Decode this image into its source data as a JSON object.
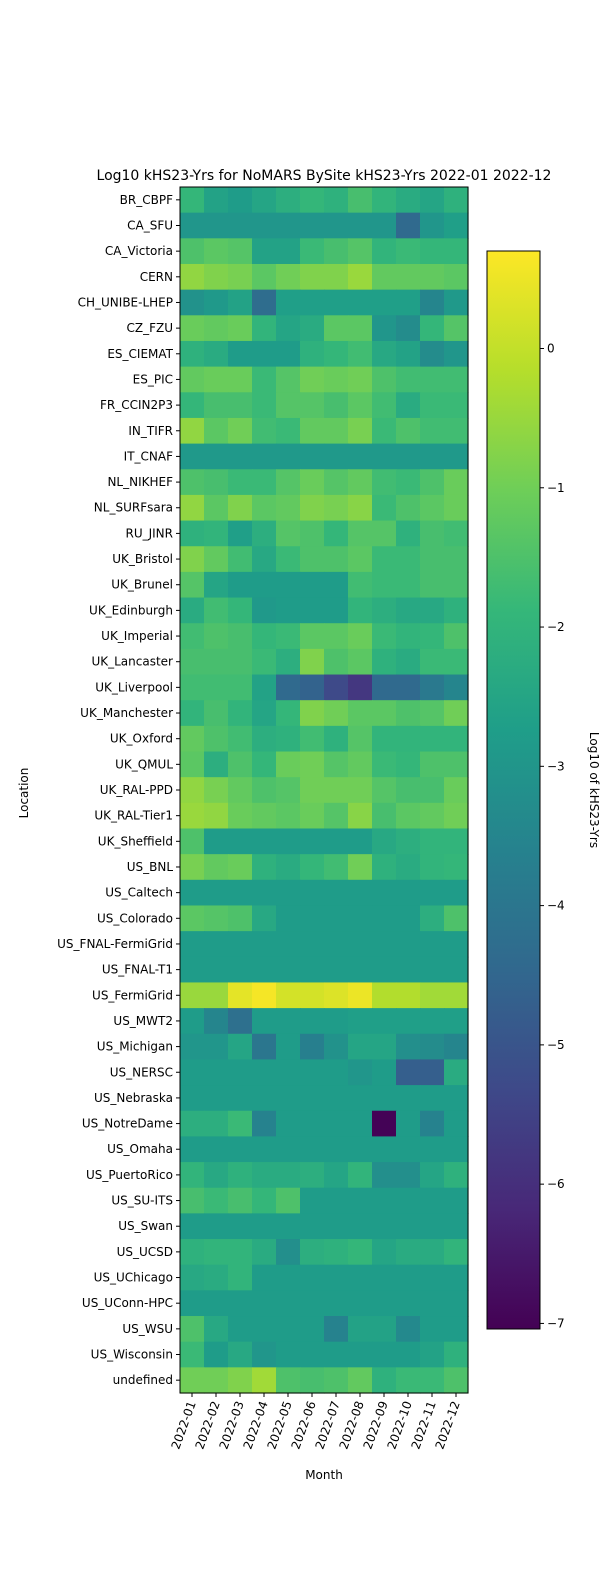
{
  "chart_data": {
    "type": "heatmap",
    "title": "Log10 kHS23-Yrs for NoMARS BySite kHS23-Yrs 2022-01 2022-12",
    "xlabel": "Month",
    "ylabel": "Location",
    "colorbar_label": "Log10 of kHS23-Yrs",
    "colormap": "viridis",
    "vmin": -7.04,
    "vmax": 0.7,
    "colorbar_ticks": [
      0,
      -1,
      -2,
      -3,
      -4,
      -5,
      -6,
      -7
    ],
    "colorbar_tick_labels": [
      "0",
      "−1",
      "−2",
      "−3",
      "−4",
      "−5",
      "−6",
      "−7"
    ],
    "x": [
      "2022-01",
      "2022-02",
      "2022-03",
      "2022-04",
      "2022-05",
      "2022-06",
      "2022-07",
      "2022-08",
      "2022-09",
      "2022-10",
      "2022-11",
      "2022-12"
    ],
    "y": [
      "BR_CBPF",
      "CA_SFU",
      "CA_Victoria",
      "CERN",
      "CH_UNIBE-LHEP",
      "CZ_FZU",
      "ES_CIEMAT",
      "ES_PIC",
      "FR_CCIN2P3",
      "IN_TIFR",
      "IT_CNAF",
      "NL_NIKHEF",
      "NL_SURFsara",
      "RU_JINR",
      "UK_Bristol",
      "UK_Brunel",
      "UK_Edinburgh",
      "UK_Imperial",
      "UK_Lancaster",
      "UK_Liverpool",
      "UK_Manchester",
      "UK_Oxford",
      "UK_QMUL",
      "UK_RAL-PPD",
      "UK_RAL-Tier1",
      "UK_Sheffield",
      "US_BNL",
      "US_Caltech",
      "US_Colorado",
      "US_FNAL-FermiGrid",
      "US_FNAL-T1",
      "US_FermiGrid",
      "US_MWT2",
      "US_Michigan",
      "US_NERSC",
      "US_Nebraska",
      "US_NotreDame",
      "US_Omaha",
      "US_PuertoRico",
      "US_SU-ITS",
      "US_Swan",
      "US_UCSD",
      "US_UChicago",
      "US_UConn-HPC",
      "US_WSU",
      "US_Wisconsin",
      "undefined"
    ],
    "z": [
      [
        -1.9,
        -2.6,
        -2.8,
        -2.5,
        -2.2,
        -1.9,
        -2.1,
        -1.6,
        -2.0,
        -2.3,
        -2.5,
        -2.1
      ],
      [
        -3.0,
        -3.0,
        -3.0,
        -3.0,
        -3.0,
        -3.0,
        -3.0,
        -3.0,
        -3.0,
        -4.4,
        -3.0,
        -2.7
      ],
      [
        -1.5,
        -1.3,
        -1.4,
        -2.6,
        -2.6,
        -1.8,
        -1.6,
        -1.4,
        -2.0,
        -1.8,
        -1.9,
        -1.9
      ],
      [
        -0.6,
        -0.8,
        -0.9,
        -1.3,
        -1.0,
        -0.8,
        -0.8,
        -0.5,
        -1.2,
        -1.2,
        -1.2,
        -1.3
      ],
      [
        -3.1,
        -2.9,
        -2.6,
        -4.3,
        -2.7,
        -2.7,
        -2.7,
        -2.7,
        -2.7,
        -2.7,
        -3.5,
        -2.9
      ],
      [
        -1.1,
        -1.2,
        -1.1,
        -2.0,
        -2.5,
        -2.3,
        -1.3,
        -1.3,
        -3.0,
        -3.3,
        -1.9,
        -1.4
      ],
      [
        -2.1,
        -2.3,
        -2.8,
        -2.8,
        -2.8,
        -2.1,
        -1.9,
        -1.7,
        -2.4,
        -2.6,
        -3.3,
        -3.0
      ],
      [
        -1.2,
        -1.1,
        -1.1,
        -1.8,
        -1.4,
        -1.0,
        -1.1,
        -1.0,
        -1.5,
        -1.7,
        -1.7,
        -1.7
      ],
      [
        -1.9,
        -1.6,
        -1.6,
        -1.8,
        -1.4,
        -1.4,
        -1.6,
        -1.3,
        -1.7,
        -2.3,
        -1.8,
        -1.8
      ],
      [
        -0.6,
        -1.3,
        -1.0,
        -1.7,
        -1.8,
        -1.2,
        -1.2,
        -0.9,
        -1.8,
        -1.5,
        -1.7,
        -1.7
      ],
      [
        -2.9,
        -2.9,
        -2.9,
        -2.9,
        -2.9,
        -2.9,
        -2.9,
        -2.9,
        -2.9,
        -2.9,
        -2.9,
        -2.9
      ],
      [
        -1.5,
        -1.6,
        -1.8,
        -1.8,
        -1.4,
        -1.1,
        -1.4,
        -1.2,
        -1.7,
        -1.8,
        -1.5,
        -1.1
      ],
      [
        -0.6,
        -1.3,
        -0.8,
        -1.3,
        -1.2,
        -0.8,
        -0.9,
        -0.7,
        -1.8,
        -1.5,
        -1.3,
        -1.1
      ],
      [
        -2.1,
        -2.0,
        -2.7,
        -2.2,
        -1.4,
        -1.5,
        -1.9,
        -1.4,
        -1.4,
        -2.1,
        -1.6,
        -1.7
      ],
      [
        -0.8,
        -1.2,
        -1.7,
        -2.4,
        -1.8,
        -1.5,
        -1.5,
        -1.3,
        -1.8,
        -1.8,
        -1.6,
        -1.6
      ],
      [
        -1.4,
        -2.5,
        -2.8,
        -2.8,
        -2.8,
        -2.8,
        -2.8,
        -1.7,
        -1.8,
        -1.8,
        -1.6,
        -1.6
      ],
      [
        -2.3,
        -1.7,
        -1.9,
        -2.9,
        -2.8,
        -2.8,
        -2.8,
        -2.0,
        -2.2,
        -2.4,
        -2.4,
        -2.1
      ],
      [
        -1.7,
        -1.5,
        -1.6,
        -1.9,
        -1.8,
        -1.3,
        -1.3,
        -1.1,
        -1.8,
        -2.0,
        -1.9,
        -1.5
      ],
      [
        -1.6,
        -1.6,
        -1.6,
        -1.8,
        -2.2,
        -0.8,
        -1.5,
        -1.3,
        -2.1,
        -2.3,
        -1.8,
        -1.8
      ],
      [
        -1.7,
        -1.7,
        -1.7,
        -2.6,
        -4.4,
        -4.6,
        -5.3,
        -5.8,
        -4.4,
        -4.4,
        -3.9,
        -3.5
      ],
      [
        -2.0,
        -1.6,
        -2.0,
        -2.5,
        -1.9,
        -0.8,
        -1.0,
        -1.3,
        -1.3,
        -1.5,
        -1.4,
        -1.0
      ],
      [
        -1.2,
        -1.5,
        -1.7,
        -2.2,
        -2.1,
        -1.7,
        -2.1,
        -1.4,
        -2.0,
        -2.0,
        -2.0,
        -2.0
      ],
      [
        -1.3,
        -2.2,
        -1.5,
        -1.9,
        -1.1,
        -1.0,
        -1.4,
        -1.2,
        -1.8,
        -1.9,
        -1.5,
        -1.5
      ],
      [
        -0.6,
        -0.9,
        -1.2,
        -1.5,
        -1.4,
        -1.0,
        -1.0,
        -1.0,
        -1.4,
        -1.6,
        -1.6,
        -1.1
      ],
      [
        -0.5,
        -0.6,
        -1.1,
        -1.2,
        -1.3,
        -1.1,
        -1.4,
        -0.7,
        -1.6,
        -1.3,
        -1.2,
        -1.0
      ],
      [
        -1.5,
        -2.8,
        -2.8,
        -2.8,
        -2.8,
        -2.8,
        -2.8,
        -2.8,
        -2.4,
        -2.2,
        -2.0,
        -2.0
      ],
      [
        -0.9,
        -1.2,
        -1.1,
        -2.1,
        -2.3,
        -1.9,
        -1.7,
        -1.0,
        -2.1,
        -2.3,
        -2.0,
        -1.9
      ],
      [
        -2.8,
        -2.8,
        -2.8,
        -2.8,
        -2.8,
        -2.8,
        -2.8,
        -2.8,
        -2.8,
        -2.8,
        -2.8,
        -2.8
      ],
      [
        -1.3,
        -1.4,
        -1.5,
        -2.4,
        -2.8,
        -2.8,
        -2.8,
        -2.8,
        -2.8,
        -2.8,
        -2.2,
        -1.5
      ],
      [
        -2.8,
        -2.8,
        -2.8,
        -2.8,
        -2.8,
        -2.8,
        -2.8,
        -2.8,
        -2.8,
        -2.8,
        -2.8,
        -2.8
      ],
      [
        -2.8,
        -2.8,
        -2.8,
        -2.8,
        -2.8,
        -2.8,
        -2.8,
        -2.8,
        -2.8,
        -2.8,
        -2.8,
        -2.8
      ],
      [
        -0.5,
        -0.5,
        0.4,
        0.6,
        0.2,
        0.2,
        0.3,
        0.5,
        -0.2,
        -0.2,
        -0.4,
        -0.4
      ],
      [
        -2.8,
        -3.5,
        -4.2,
        -2.8,
        -2.8,
        -2.8,
        -2.8,
        -2.7,
        -2.7,
        -2.7,
        -2.7,
        -2.7
      ],
      [
        -3.0,
        -3.0,
        -2.5,
        -4.0,
        -2.8,
        -3.7,
        -3.1,
        -2.5,
        -2.5,
        -3.2,
        -3.3,
        -3.5
      ],
      [
        -2.8,
        -2.8,
        -2.8,
        -2.8,
        -2.8,
        -2.8,
        -2.8,
        -3.0,
        -2.8,
        -4.7,
        -4.7,
        -2.3
      ],
      [
        -2.8,
        -2.8,
        -2.8,
        -2.8,
        -2.8,
        -2.8,
        -2.8,
        -2.8,
        -2.8,
        -2.8,
        -2.8,
        -2.8
      ],
      [
        -2.2,
        -2.2,
        -1.8,
        -3.6,
        -2.8,
        -2.8,
        -2.8,
        -2.8,
        -7.0,
        -2.8,
        -3.6,
        -2.8
      ],
      [
        -2.8,
        -2.8,
        -2.8,
        -2.8,
        -2.8,
        -2.8,
        -2.8,
        -2.8,
        -2.8,
        -2.8,
        -2.8,
        -2.8
      ],
      [
        -2.0,
        -2.4,
        -2.1,
        -2.3,
        -2.3,
        -2.2,
        -2.5,
        -2.0,
        -3.2,
        -3.2,
        -2.5,
        -2.1
      ],
      [
        -1.6,
        -1.8,
        -1.6,
        -1.9,
        -1.5,
        -2.8,
        -2.8,
        -2.8,
        -2.8,
        -2.8,
        -2.8,
        -2.8
      ],
      [
        -2.8,
        -2.8,
        -2.8,
        -2.8,
        -2.8,
        -2.8,
        -2.8,
        -2.8,
        -2.8,
        -2.8,
        -2.8,
        -2.8
      ],
      [
        -2.1,
        -2.0,
        -2.0,
        -2.3,
        -3.2,
        -2.2,
        -2.1,
        -1.9,
        -2.5,
        -2.3,
        -2.3,
        -2.0
      ],
      [
        -2.4,
        -2.3,
        -2.0,
        -2.8,
        -2.8,
        -2.8,
        -2.8,
        -2.8,
        -2.8,
        -2.8,
        -2.8,
        -2.8
      ],
      [
        -2.8,
        -2.8,
        -2.8,
        -2.8,
        -2.8,
        -2.8,
        -2.8,
        -2.8,
        -2.8,
        -2.8,
        -2.8,
        -2.8
      ],
      [
        -1.5,
        -2.4,
        -2.8,
        -2.8,
        -2.8,
        -2.8,
        -3.6,
        -2.6,
        -2.6,
        -3.4,
        -2.8,
        -2.8
      ],
      [
        -1.8,
        -2.8,
        -2.4,
        -3.0,
        -2.8,
        -2.8,
        -2.8,
        -2.8,
        -2.8,
        -2.8,
        -2.6,
        -2.1
      ],
      [
        -1.0,
        -1.0,
        -0.8,
        -0.4,
        -1.5,
        -1.6,
        -1.5,
        -1.2,
        -2.1,
        -1.8,
        -1.8,
        -1.5
      ]
    ]
  }
}
